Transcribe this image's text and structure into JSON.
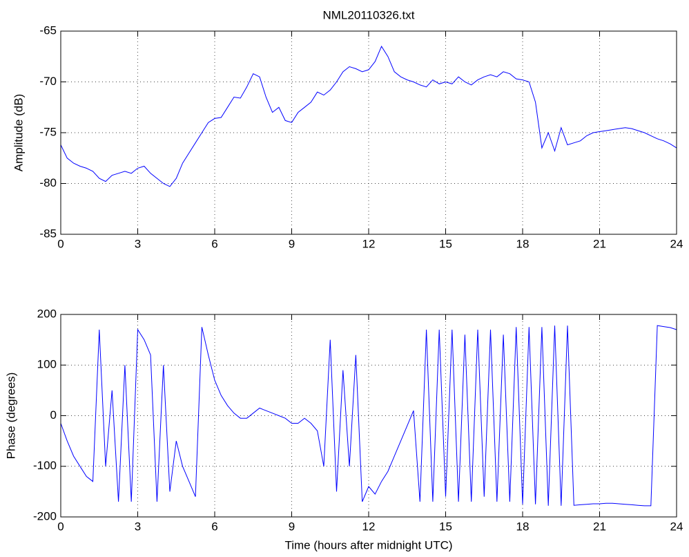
{
  "chart_data": [
    {
      "type": "line",
      "title": "NML20110326.txt",
      "ylabel": "Amplitude (dB)",
      "color": "#0000ff",
      "grid": true,
      "xlim": [
        0,
        24
      ],
      "xticks": [
        0,
        3,
        6,
        9,
        12,
        15,
        18,
        21,
        24
      ],
      "ylim": [
        -85,
        -65
      ],
      "yticks": [
        -85,
        -80,
        -75,
        -70,
        -65
      ],
      "x": [
        0,
        0.25,
        0.5,
        0.75,
        1,
        1.25,
        1.5,
        1.75,
        2,
        2.25,
        2.5,
        2.75,
        3,
        3.25,
        3.5,
        3.75,
        4,
        4.25,
        4.5,
        4.75,
        5,
        5.25,
        5.5,
        5.75,
        6,
        6.25,
        6.5,
        6.75,
        7,
        7.25,
        7.5,
        7.75,
        8,
        8.25,
        8.5,
        8.75,
        9,
        9.25,
        9.5,
        9.75,
        10,
        10.25,
        10.5,
        10.75,
        11,
        11.25,
        11.5,
        11.75,
        12,
        12.25,
        12.5,
        12.75,
        13,
        13.25,
        13.5,
        13.75,
        14,
        14.25,
        14.5,
        14.75,
        15,
        15.25,
        15.5,
        15.75,
        16,
        16.25,
        16.5,
        16.75,
        17,
        17.25,
        17.5,
        17.75,
        18,
        18.25,
        18.5,
        18.75,
        19,
        19.25,
        19.5,
        19.75,
        20,
        20.25,
        20.5,
        20.75,
        21,
        21.25,
        21.5,
        21.75,
        22,
        22.25,
        22.5,
        22.75,
        23,
        23.25,
        23.5,
        23.75,
        24
      ],
      "values": [
        -76.2,
        -77.5,
        -78,
        -78.3,
        -78.5,
        -78.8,
        -79.5,
        -79.8,
        -79.2,
        -79,
        -78.8,
        -79,
        -78.5,
        -78.3,
        -79,
        -79.5,
        -80,
        -80.3,
        -79.5,
        -78,
        -77,
        -76,
        -75,
        -74,
        -73.6,
        -73.5,
        -72.5,
        -71.5,
        -71.6,
        -70.5,
        -69.2,
        -69.5,
        -71.5,
        -73,
        -72.5,
        -73.8,
        -74,
        -73,
        -72.5,
        -72,
        -71,
        -71.3,
        -70.8,
        -70,
        -69,
        -68.5,
        -68.7,
        -69,
        -68.8,
        -68,
        -66.5,
        -67.5,
        -69,
        -69.5,
        -69.8,
        -70,
        -70.3,
        -70.5,
        -69.8,
        -70.2,
        -70,
        -70.2,
        -69.5,
        -70,
        -70.3,
        -69.8,
        -69.5,
        -69.3,
        -69.5,
        -69,
        -69.2,
        -69.7,
        -69.8,
        -70,
        -72,
        -76.5,
        -75,
        -76.8,
        -74.5,
        -76.2,
        -76,
        -75.8,
        -75.3,
        -75,
        -74.9,
        -74.8,
        -74.7,
        -74.6,
        -74.5,
        -74.6,
        -74.8,
        -75,
        -75.3,
        -75.6,
        -75.8,
        -76.1,
        -76.5
      ]
    },
    {
      "type": "line",
      "xlabel": "Time (hours after midnight UTC)",
      "ylabel": "Phase (degrees)",
      "color": "#0000ff",
      "grid": true,
      "xlim": [
        0,
        24
      ],
      "xticks": [
        0,
        3,
        6,
        9,
        12,
        15,
        18,
        21,
        24
      ],
      "ylim": [
        -200,
        200
      ],
      "yticks": [
        -200,
        -100,
        0,
        100,
        200
      ],
      "x": [
        0,
        0.25,
        0.5,
        0.75,
        1,
        1.25,
        1.5,
        1.75,
        2,
        2.25,
        2.5,
        2.75,
        3,
        3.25,
        3.5,
        3.75,
        4,
        4.25,
        4.5,
        4.75,
        5,
        5.25,
        5.5,
        5.75,
        6,
        6.25,
        6.5,
        6.75,
        7,
        7.25,
        7.5,
        7.75,
        8,
        8.25,
        8.5,
        8.75,
        9,
        9.25,
        9.5,
        9.75,
        10,
        10.25,
        10.5,
        10.75,
        11,
        11.25,
        11.5,
        11.75,
        12,
        12.25,
        12.5,
        12.75,
        13,
        13.25,
        13.5,
        13.75,
        14,
        14.25,
        14.5,
        14.75,
        15,
        15.25,
        15.5,
        15.75,
        16,
        16.25,
        16.5,
        16.75,
        17,
        17.25,
        17.5,
        17.75,
        18,
        18.25,
        18.5,
        18.75,
        19,
        19.25,
        19.5,
        19.75,
        20,
        20.25,
        20.5,
        20.75,
        21,
        21.25,
        21.5,
        21.75,
        22,
        22.25,
        22.5,
        22.75,
        23,
        23.25,
        23.5,
        23.75,
        24
      ],
      "values": [
        -15,
        -50,
        -80,
        -100,
        -120,
        -130,
        170,
        -100,
        50,
        -170,
        100,
        -170,
        170,
        150,
        120,
        -170,
        100,
        -150,
        -50,
        -100,
        -130,
        -160,
        175,
        120,
        70,
        40,
        20,
        5,
        -5,
        -5,
        5,
        15,
        10,
        5,
        0,
        -5,
        -15,
        -15,
        -5,
        -15,
        -30,
        -100,
        150,
        -150,
        90,
        -100,
        120,
        -170,
        -140,
        -155,
        -130,
        -110,
        -80,
        -50,
        -20,
        10,
        -170,
        170,
        -170,
        170,
        -160,
        170,
        -170,
        160,
        -170,
        170,
        -160,
        170,
        -170,
        160,
        -170,
        175,
        -175,
        175,
        -175,
        175,
        -178,
        178,
        -178,
        178,
        -177,
        -176,
        -175,
        -174,
        -174,
        -173,
        -173,
        -174,
        -175,
        -176,
        -177,
        -178,
        -178,
        178,
        176,
        174,
        170
      ]
    }
  ]
}
